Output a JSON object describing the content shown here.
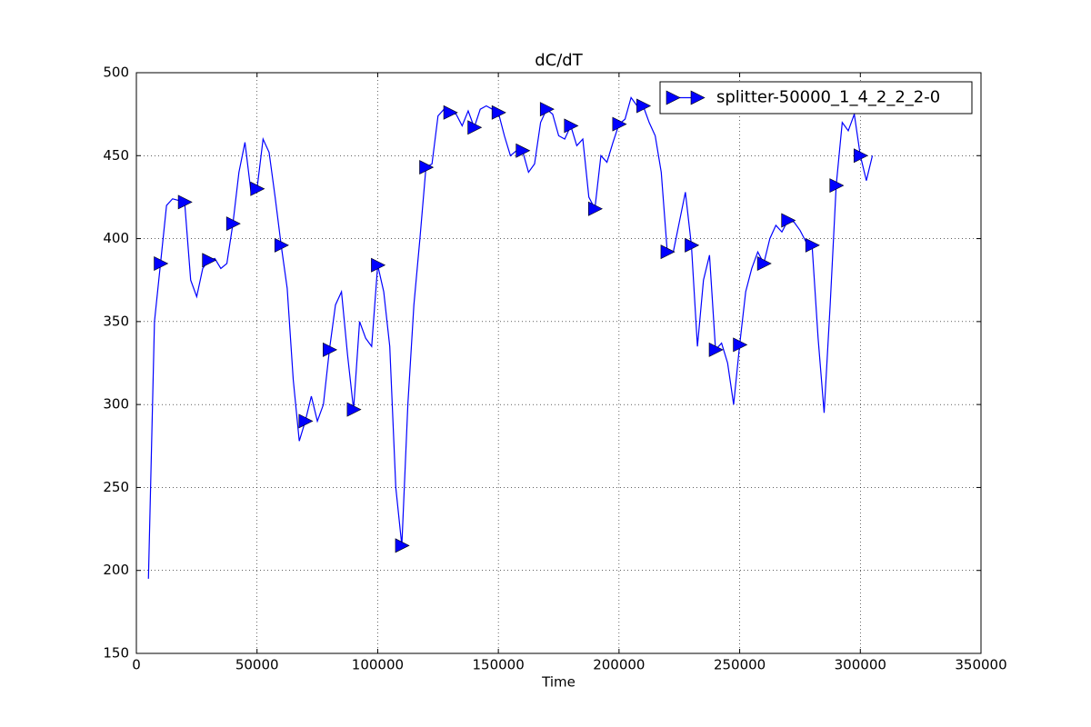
{
  "chart_data": {
    "type": "line",
    "title": "dC/dT",
    "x_label": "Time",
    "x": [
      5000,
      7500,
      10000,
      12500,
      15000,
      17500,
      20000,
      22500,
      25000,
      27500,
      30000,
      32500,
      35000,
      37500,
      40000,
      42500,
      45000,
      47500,
      50000,
      52500,
      55000,
      57500,
      60000,
      62500,
      65000,
      67500,
      70000,
      72500,
      75000,
      77500,
      80000,
      82500,
      85000,
      87500,
      90000,
      92500,
      95000,
      97500,
      100000,
      102500,
      105000,
      107500,
      110000,
      112500,
      115000,
      117500,
      120000,
      122500,
      125000,
      127500,
      130000,
      132500,
      135000,
      137500,
      140000,
      142500,
      145000,
      147500,
      150000,
      152500,
      155000,
      157500,
      160000,
      162500,
      165000,
      167500,
      170000,
      172500,
      175000,
      177500,
      180000,
      182500,
      185000,
      187500,
      190000,
      192500,
      195000,
      197500,
      200000,
      202500,
      205000,
      207500,
      210000,
      212500,
      215000,
      217500,
      220000,
      222500,
      225000,
      227500,
      230000,
      232500,
      235000,
      237500,
      240000,
      242500,
      245000,
      247500,
      250000,
      252500,
      255000,
      257500,
      260000,
      262500,
      265000,
      267500,
      270000,
      272500,
      275000,
      277500,
      280000,
      282500,
      285000,
      287500,
      290000,
      292500,
      295000,
      297500,
      300000,
      302500,
      305000
    ],
    "series": [
      {
        "name": "splitter-50000_1_4_2_2_2-0",
        "color": "#0000ff",
        "marker": "triangle-right",
        "markevery": [
          2,
          4
        ],
        "values": [
          195,
          350,
          385,
          420,
          424,
          423,
          422,
          375,
          365,
          382,
          387,
          388,
          382,
          385,
          409,
          440,
          458,
          428,
          430,
          460,
          452,
          425,
          396,
          370,
          315,
          278,
          290,
          305,
          290,
          300,
          333,
          360,
          368,
          330,
          297,
          350,
          340,
          335,
          384,
          368,
          335,
          250,
          215,
          300,
          360,
          400,
          443,
          445,
          474,
          478,
          476,
          475,
          468,
          477,
          467,
          478,
          480,
          478,
          476,
          462,
          450,
          453,
          453,
          440,
          445,
          470,
          478,
          475,
          462,
          460,
          468,
          456,
          460,
          425,
          418,
          450,
          446,
          458,
          469,
          472,
          485,
          480,
          480,
          470,
          462,
          440,
          392,
          392,
          410,
          428,
          396,
          335,
          375,
          390,
          333,
          337,
          325,
          300,
          336,
          368,
          382,
          392,
          385,
          400,
          408,
          404,
          411,
          410,
          405,
          398,
          396,
          340,
          295,
          360,
          432,
          470,
          465,
          475,
          450,
          435,
          450
        ]
      }
    ],
    "xlim": [
      0,
      350000
    ],
    "xticks": [
      0,
      50000,
      100000,
      150000,
      200000,
      250000,
      300000,
      350000
    ],
    "ylim": [
      150,
      500
    ],
    "yticks": [
      150,
      200,
      250,
      300,
      350,
      400,
      450,
      500
    ],
    "grid": true,
    "legend": "upper right"
  }
}
